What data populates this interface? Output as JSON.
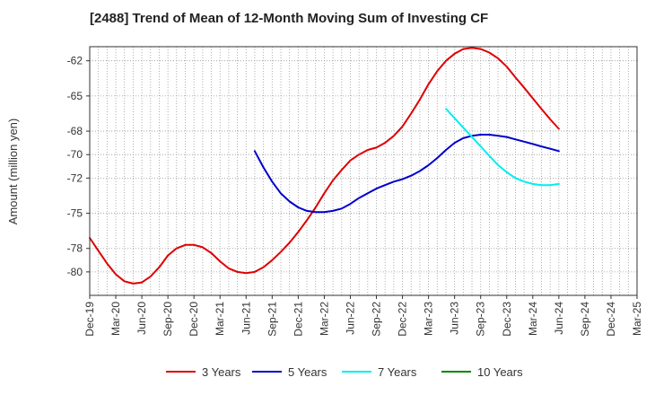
{
  "chart_data": {
    "type": "line",
    "title": "[2488]  Trend of Mean of 12-Month Moving Sum of Investing CF",
    "xlabel": "",
    "ylabel": "Amount (million yen)",
    "ylim": [
      -82.0,
      -60.8
    ],
    "yticks": [
      -62,
      -65,
      -68,
      -70,
      -72,
      -75,
      -78,
      -80
    ],
    "ytick_labels": [
      "-62",
      "-65",
      "-68",
      "-70",
      "-72",
      "-75",
      "-78",
      "-80"
    ],
    "x_categories": [
      "Dec-19",
      "Mar-20",
      "Jun-20",
      "Sep-20",
      "Dec-20",
      "Mar-21",
      "Jun-21",
      "Sep-21",
      "Dec-21",
      "Mar-22",
      "Jun-22",
      "Sep-22",
      "Dec-22",
      "Mar-23",
      "Jun-23",
      "Sep-23",
      "Dec-23",
      "Mar-24",
      "Jun-24",
      "Sep-24",
      "Dec-24",
      "Mar-25"
    ],
    "grid": true,
    "legend_position": "bottom",
    "series": [
      {
        "name": "3 Years",
        "color": "#dd0000",
        "points": [
          [
            0,
            -77.1
          ],
          [
            0.33,
            -78.2
          ],
          [
            0.67,
            -79.3
          ],
          [
            1,
            -80.2
          ],
          [
            1.33,
            -80.8
          ],
          [
            1.67,
            -81.0
          ],
          [
            2,
            -80.9
          ],
          [
            2.33,
            -80.4
          ],
          [
            2.67,
            -79.6
          ],
          [
            3,
            -78.6
          ],
          [
            3.33,
            -78.0
          ],
          [
            3.67,
            -77.7
          ],
          [
            4,
            -77.7
          ],
          [
            4.33,
            -77.9
          ],
          [
            4.67,
            -78.4
          ],
          [
            5,
            -79.1
          ],
          [
            5.33,
            -79.7
          ],
          [
            5.67,
            -80.0
          ],
          [
            6,
            -80.1
          ],
          [
            6.33,
            -80.0
          ],
          [
            6.67,
            -79.6
          ],
          [
            7,
            -79.0
          ],
          [
            7.33,
            -78.3
          ],
          [
            7.67,
            -77.5
          ],
          [
            8,
            -76.6
          ],
          [
            8.33,
            -75.6
          ],
          [
            8.67,
            -74.5
          ],
          [
            9,
            -73.3
          ],
          [
            9.33,
            -72.2
          ],
          [
            9.67,
            -71.3
          ],
          [
            10,
            -70.5
          ],
          [
            10.33,
            -70.0
          ],
          [
            10.67,
            -69.6
          ],
          [
            11,
            -69.4
          ],
          [
            11.33,
            -69.0
          ],
          [
            11.67,
            -68.4
          ],
          [
            12,
            -67.6
          ],
          [
            12.33,
            -66.5
          ],
          [
            12.67,
            -65.3
          ],
          [
            13,
            -64.0
          ],
          [
            13.33,
            -62.9
          ],
          [
            13.67,
            -62.0
          ],
          [
            14,
            -61.4
          ],
          [
            14.33,
            -61.0
          ],
          [
            14.67,
            -60.9
          ],
          [
            15,
            -61.0
          ],
          [
            15.33,
            -61.3
          ],
          [
            15.67,
            -61.8
          ],
          [
            16,
            -62.5
          ],
          [
            16.33,
            -63.4
          ],
          [
            16.67,
            -64.3
          ],
          [
            17,
            -65.2
          ],
          [
            17.33,
            -66.1
          ],
          [
            17.67,
            -67.0
          ],
          [
            18,
            -67.8
          ]
        ]
      },
      {
        "name": "5 Years",
        "color": "#0000cc",
        "points": [
          [
            6.33,
            -69.7
          ],
          [
            6.67,
            -71.1
          ],
          [
            7,
            -72.3
          ],
          [
            7.33,
            -73.3
          ],
          [
            7.67,
            -74.0
          ],
          [
            8,
            -74.5
          ],
          [
            8.33,
            -74.8
          ],
          [
            8.67,
            -74.9
          ],
          [
            9,
            -74.9
          ],
          [
            9.33,
            -74.8
          ],
          [
            9.67,
            -74.6
          ],
          [
            10,
            -74.2
          ],
          [
            10.33,
            -73.7
          ],
          [
            10.67,
            -73.3
          ],
          [
            11,
            -72.9
          ],
          [
            11.33,
            -72.6
          ],
          [
            11.67,
            -72.3
          ],
          [
            12,
            -72.1
          ],
          [
            12.33,
            -71.8
          ],
          [
            12.67,
            -71.4
          ],
          [
            13,
            -70.9
          ],
          [
            13.33,
            -70.3
          ],
          [
            13.67,
            -69.6
          ],
          [
            14,
            -69.0
          ],
          [
            14.33,
            -68.6
          ],
          [
            14.67,
            -68.4
          ],
          [
            15,
            -68.3
          ],
          [
            15.33,
            -68.3
          ],
          [
            15.67,
            -68.4
          ],
          [
            16,
            -68.5
          ],
          [
            16.33,
            -68.7
          ],
          [
            16.67,
            -68.9
          ],
          [
            17,
            -69.1
          ],
          [
            17.33,
            -69.3
          ],
          [
            17.67,
            -69.5
          ],
          [
            18,
            -69.7
          ]
        ]
      },
      {
        "name": "7 Years",
        "color": "#00eeee",
        "points": [
          [
            13.67,
            -66.1
          ],
          [
            14,
            -66.9
          ],
          [
            14.33,
            -67.7
          ],
          [
            14.67,
            -68.5
          ],
          [
            15,
            -69.3
          ],
          [
            15.33,
            -70.1
          ],
          [
            15.67,
            -70.9
          ],
          [
            16,
            -71.5
          ],
          [
            16.33,
            -72.0
          ],
          [
            16.67,
            -72.3
          ],
          [
            17,
            -72.5
          ],
          [
            17.33,
            -72.6
          ],
          [
            17.67,
            -72.6
          ],
          [
            18,
            -72.5
          ]
        ]
      },
      {
        "name": "10 Years",
        "color": "#008800",
        "points": []
      }
    ]
  }
}
